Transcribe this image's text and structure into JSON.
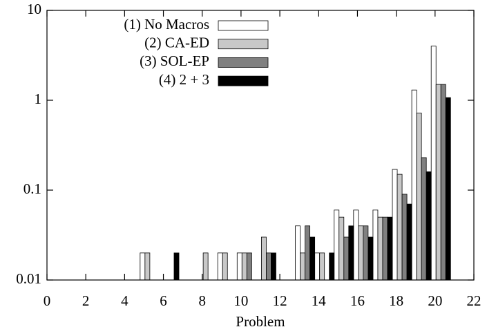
{
  "chart_data": {
    "type": "bar",
    "x_label": "Problem",
    "log_y": true,
    "x": [
      1,
      2,
      3,
      4,
      5,
      6,
      7,
      8,
      9,
      10,
      11,
      12,
      13,
      14,
      15,
      16,
      17,
      18,
      19,
      20
    ],
    "series": [
      {
        "name": "(1) No Macros",
        "color": "#ffffff",
        "values": [
          null,
          null,
          null,
          null,
          0.02,
          null,
          null,
          null,
          0.02,
          0.02,
          null,
          null,
          0.04,
          0.02,
          0.06,
          0.06,
          0.06,
          0.17,
          1.3,
          4.0
        ]
      },
      {
        "name": "(2) CA-ED",
        "color": "#c8c8c8",
        "values": [
          null,
          null,
          null,
          null,
          0.02,
          null,
          null,
          0.02,
          0.02,
          0.02,
          0.03,
          null,
          0.02,
          0.02,
          0.05,
          0.04,
          0.05,
          0.15,
          0.72,
          1.5
        ]
      },
      {
        "name": "(3) SOL-EP",
        "color": "#808080",
        "values": [
          null,
          null,
          null,
          null,
          null,
          null,
          null,
          null,
          null,
          0.02,
          0.02,
          null,
          0.04,
          null,
          0.03,
          0.04,
          0.05,
          0.09,
          0.23,
          1.5
        ]
      },
      {
        "name": "(4) 2 + 3",
        "color": "#000000",
        "values": [
          null,
          null,
          null,
          null,
          null,
          0.02,
          null,
          null,
          null,
          null,
          0.02,
          null,
          0.03,
          0.02,
          0.04,
          0.03,
          0.05,
          0.07,
          0.16,
          1.07
        ]
      }
    ],
    "xlim": [
      0,
      22
    ],
    "xticks": [
      0,
      2,
      4,
      6,
      8,
      10,
      12,
      14,
      16,
      18,
      20,
      22
    ],
    "ylim": [
      0.01,
      10
    ],
    "yticks": [
      0.01,
      0.1,
      1,
      10
    ],
    "legend": "top-left"
  }
}
